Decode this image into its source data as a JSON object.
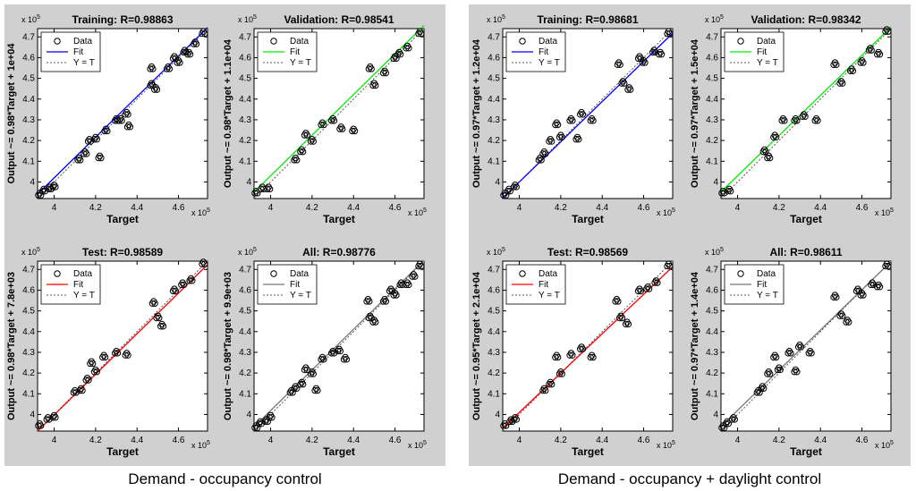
{
  "figure": {
    "captions": [
      "Demand - occupancy control",
      "Demand - occupancy + daylight control"
    ]
  },
  "chart_data": [
    {
      "type": "scatter",
      "group": "Demand - occupancy control",
      "title": "Training: R=0.98863",
      "ylabel": "Output ~= 0.98*Target + 1e+04",
      "xlabel": "Target",
      "fit_color": "#0000ff",
      "slope": 0.98,
      "intercept": 10000,
      "scale_exponent": "5",
      "xlim": [
        3.92,
        4.74
      ],
      "ylim": [
        3.92,
        4.74
      ],
      "xticks": [
        "4",
        "4.2",
        "4.4",
        "4.6"
      ],
      "yticks": [
        "4",
        "4.1",
        "4.2",
        "4.3",
        "4.4",
        "4.5",
        "4.6",
        "4.7"
      ],
      "legend": [
        "Data",
        "Fit",
        "Y = T"
      ],
      "points": [
        [
          3.93,
          3.94
        ],
        [
          3.95,
          3.96
        ],
        [
          3.98,
          3.97
        ],
        [
          4.0,
          3.98
        ],
        [
          4.12,
          4.11
        ],
        [
          4.15,
          4.14
        ],
        [
          4.17,
          4.2
        ],
        [
          4.2,
          4.21
        ],
        [
          4.22,
          4.12
        ],
        [
          4.25,
          4.25
        ],
        [
          4.3,
          4.3
        ],
        [
          4.32,
          4.3
        ],
        [
          4.35,
          4.33
        ],
        [
          4.36,
          4.27
        ],
        [
          4.47,
          4.55
        ],
        [
          4.47,
          4.47
        ],
        [
          4.49,
          4.45
        ],
        [
          4.55,
          4.55
        ],
        [
          4.58,
          4.6
        ],
        [
          4.6,
          4.58
        ],
        [
          4.63,
          4.63
        ],
        [
          4.65,
          4.62
        ],
        [
          4.68,
          4.67
        ],
        [
          4.72,
          4.72
        ]
      ]
    },
    {
      "type": "scatter",
      "group": "Demand - occupancy control",
      "title": "Validation: R=0.98541",
      "ylabel": "Output ~= 0.98*Target + 1.1e+04",
      "xlabel": "Target",
      "fit_color": "#00ee00",
      "slope": 0.98,
      "intercept": 11000,
      "scale_exponent": "5",
      "xlim": [
        3.92,
        4.74
      ],
      "ylim": [
        3.92,
        4.74
      ],
      "xticks": [
        "4",
        "4.2",
        "4.4",
        "4.6"
      ],
      "yticks": [
        "4",
        "4.1",
        "4.2",
        "4.3",
        "4.4",
        "4.5",
        "4.6",
        "4.7"
      ],
      "legend": [
        "Data",
        "Fit",
        "Y = T"
      ],
      "points": [
        [
          3.93,
          3.95
        ],
        [
          3.96,
          3.97
        ],
        [
          3.99,
          3.97
        ],
        [
          4.12,
          4.11
        ],
        [
          4.15,
          4.15
        ],
        [
          4.17,
          4.23
        ],
        [
          4.2,
          4.2
        ],
        [
          4.25,
          4.28
        ],
        [
          4.3,
          4.3
        ],
        [
          4.34,
          4.26
        ],
        [
          4.4,
          4.25
        ],
        [
          4.48,
          4.55
        ],
        [
          4.5,
          4.47
        ],
        [
          4.55,
          4.53
        ],
        [
          4.6,
          4.6
        ],
        [
          4.62,
          4.62
        ],
        [
          4.66,
          4.65
        ],
        [
          4.72,
          4.72
        ]
      ]
    },
    {
      "type": "scatter",
      "group": "Demand - occupancy control",
      "title": "Test: R=0.98589",
      "ylabel": "Output ~= 0.98*Target + 7.8e+03",
      "xlabel": "Target",
      "fit_color": "#ff0000",
      "slope": 0.98,
      "intercept": 7800,
      "scale_exponent": "5",
      "xlim": [
        3.92,
        4.74
      ],
      "ylim": [
        3.92,
        4.74
      ],
      "xticks": [
        "4",
        "4.2",
        "4.4",
        "4.6"
      ],
      "yticks": [
        "4",
        "4.1",
        "4.2",
        "4.3",
        "4.4",
        "4.5",
        "4.6",
        "4.7"
      ],
      "legend": [
        "Data",
        "Fit",
        "Y = T"
      ],
      "points": [
        [
          3.93,
          3.95
        ],
        [
          3.97,
          3.98
        ],
        [
          4.0,
          3.99
        ],
        [
          4.1,
          4.11
        ],
        [
          4.13,
          4.12
        ],
        [
          4.16,
          4.17
        ],
        [
          4.18,
          4.25
        ],
        [
          4.2,
          4.21
        ],
        [
          4.24,
          4.28
        ],
        [
          4.3,
          4.3
        ],
        [
          4.35,
          4.29
        ],
        [
          4.48,
          4.54
        ],
        [
          4.5,
          4.47
        ],
        [
          4.52,
          4.43
        ],
        [
          4.58,
          4.6
        ],
        [
          4.62,
          4.63
        ],
        [
          4.66,
          4.65
        ],
        [
          4.72,
          4.73
        ]
      ]
    },
    {
      "type": "scatter",
      "group": "Demand - occupancy control",
      "title": "All: R=0.98776",
      "ylabel": "Output ~= 0.98*Target + 9.9e+03",
      "xlabel": "Target",
      "fit_color": "#777777",
      "slope": 0.98,
      "intercept": 9900,
      "scale_exponent": "5",
      "xlim": [
        3.92,
        4.74
      ],
      "ylim": [
        3.92,
        4.74
      ],
      "xticks": [
        "4",
        "4.2",
        "4.4",
        "4.6"
      ],
      "yticks": [
        "4",
        "4.1",
        "4.2",
        "4.3",
        "4.4",
        "4.5",
        "4.6",
        "4.7"
      ],
      "legend": [
        "Data",
        "Fit",
        "Y = T"
      ],
      "points": [
        [
          3.93,
          3.94
        ],
        [
          3.95,
          3.96
        ],
        [
          3.98,
          3.97
        ],
        [
          4.0,
          3.99
        ],
        [
          4.1,
          4.11
        ],
        [
          4.12,
          4.13
        ],
        [
          4.15,
          4.15
        ],
        [
          4.17,
          4.22
        ],
        [
          4.2,
          4.2
        ],
        [
          4.22,
          4.12
        ],
        [
          4.25,
          4.27
        ],
        [
          4.3,
          4.3
        ],
        [
          4.33,
          4.31
        ],
        [
          4.36,
          4.27
        ],
        [
          4.47,
          4.55
        ],
        [
          4.48,
          4.47
        ],
        [
          4.5,
          4.45
        ],
        [
          4.55,
          4.55
        ],
        [
          4.58,
          4.6
        ],
        [
          4.6,
          4.58
        ],
        [
          4.63,
          4.63
        ],
        [
          4.66,
          4.63
        ],
        [
          4.69,
          4.67
        ],
        [
          4.72,
          4.72
        ]
      ]
    },
    {
      "type": "scatter",
      "group": "Demand - occupancy + daylight control",
      "title": "Training: R=0.98681",
      "ylabel": "Output ~= 0.97*Target + 1.2e+04",
      "xlabel": "Target",
      "fit_color": "#0000ff",
      "slope": 0.97,
      "intercept": 12000,
      "scale_exponent": "5",
      "xlim": [
        3.92,
        4.74
      ],
      "ylim": [
        3.92,
        4.74
      ],
      "xticks": [
        "4",
        "4.2",
        "4.4",
        "4.6"
      ],
      "yticks": [
        "4",
        "4.1",
        "4.2",
        "4.3",
        "4.4",
        "4.5",
        "4.6",
        "4.7"
      ],
      "legend": [
        "Data",
        "Fit",
        "Y = T"
      ],
      "points": [
        [
          3.93,
          3.94
        ],
        [
          3.95,
          3.96
        ],
        [
          3.98,
          3.98
        ],
        [
          4.1,
          4.11
        ],
        [
          4.12,
          4.14
        ],
        [
          4.15,
          4.2
        ],
        [
          4.18,
          4.28
        ],
        [
          4.2,
          4.22
        ],
        [
          4.25,
          4.3
        ],
        [
          4.28,
          4.21
        ],
        [
          4.3,
          4.33
        ],
        [
          4.35,
          4.3
        ],
        [
          4.48,
          4.57
        ],
        [
          4.5,
          4.48
        ],
        [
          4.53,
          4.45
        ],
        [
          4.58,
          4.6
        ],
        [
          4.6,
          4.58
        ],
        [
          4.65,
          4.63
        ],
        [
          4.68,
          4.62
        ],
        [
          4.72,
          4.72
        ]
      ]
    },
    {
      "type": "scatter",
      "group": "Demand - occupancy + daylight control",
      "title": "Validation: R=0.98342",
      "ylabel": "Output ~= 0.97*Target + 1.5e+04",
      "xlabel": "Target",
      "fit_color": "#00ee00",
      "slope": 0.97,
      "intercept": 15000,
      "scale_exponent": "5",
      "xlim": [
        3.92,
        4.74
      ],
      "ylim": [
        3.92,
        4.74
      ],
      "xticks": [
        "4",
        "4.2",
        "4.4",
        "4.6"
      ],
      "yticks": [
        "4",
        "4.1",
        "4.2",
        "4.3",
        "4.4",
        "4.5",
        "4.6",
        "4.7"
      ],
      "legend": [
        "Data",
        "Fit",
        "Y = T"
      ],
      "points": [
        [
          3.93,
          3.95
        ],
        [
          3.96,
          3.96
        ],
        [
          4.13,
          4.15
        ],
        [
          4.15,
          4.12
        ],
        [
          4.18,
          4.22
        ],
        [
          4.22,
          4.3
        ],
        [
          4.28,
          4.3
        ],
        [
          4.32,
          4.32
        ],
        [
          4.38,
          4.3
        ],
        [
          4.47,
          4.57
        ],
        [
          4.5,
          4.48
        ],
        [
          4.55,
          4.54
        ],
        [
          4.6,
          4.58
        ],
        [
          4.64,
          4.64
        ],
        [
          4.68,
          4.62
        ],
        [
          4.72,
          4.73
        ]
      ]
    },
    {
      "type": "scatter",
      "group": "Demand - occupancy + daylight control",
      "title": "Test: R=0.98569",
      "ylabel": "Output ~= 0.95*Target + 2.1e+04",
      "xlabel": "Target",
      "fit_color": "#ff0000",
      "slope": 0.95,
      "intercept": 21000,
      "scale_exponent": "5",
      "xlim": [
        3.92,
        4.74
      ],
      "ylim": [
        3.92,
        4.74
      ],
      "xticks": [
        "4",
        "4.2",
        "4.4",
        "4.6"
      ],
      "yticks": [
        "4",
        "4.1",
        "4.2",
        "4.3",
        "4.4",
        "4.5",
        "4.6",
        "4.7"
      ],
      "legend": [
        "Data",
        "Fit",
        "Y = T"
      ],
      "points": [
        [
          3.93,
          3.95
        ],
        [
          3.96,
          3.97
        ],
        [
          3.98,
          3.98
        ],
        [
          4.12,
          4.12
        ],
        [
          4.15,
          4.15
        ],
        [
          4.18,
          4.28
        ],
        [
          4.2,
          4.2
        ],
        [
          4.25,
          4.29
        ],
        [
          4.3,
          4.32
        ],
        [
          4.35,
          4.28
        ],
        [
          4.47,
          4.55
        ],
        [
          4.49,
          4.47
        ],
        [
          4.52,
          4.44
        ],
        [
          4.58,
          4.6
        ],
        [
          4.62,
          4.61
        ],
        [
          4.66,
          4.64
        ],
        [
          4.72,
          4.72
        ]
      ]
    },
    {
      "type": "scatter",
      "group": "Demand - occupancy + daylight control",
      "title": "All: R=0.98611",
      "ylabel": "Output ~= 0.97*Target + 1.4e+04",
      "xlabel": "Target",
      "fit_color": "#777777",
      "slope": 0.97,
      "intercept": 14000,
      "scale_exponent": "5",
      "xlim": [
        3.92,
        4.74
      ],
      "ylim": [
        3.92,
        4.74
      ],
      "xticks": [
        "4",
        "4.2",
        "4.4",
        "4.6"
      ],
      "yticks": [
        "4",
        "4.1",
        "4.2",
        "4.3",
        "4.4",
        "4.5",
        "4.6",
        "4.7"
      ],
      "legend": [
        "Data",
        "Fit",
        "Y = T"
      ],
      "points": [
        [
          3.93,
          3.94
        ],
        [
          3.95,
          3.96
        ],
        [
          3.98,
          3.98
        ],
        [
          4.1,
          4.11
        ],
        [
          4.12,
          4.13
        ],
        [
          4.15,
          4.2
        ],
        [
          4.18,
          4.28
        ],
        [
          4.2,
          4.22
        ],
        [
          4.25,
          4.3
        ],
        [
          4.28,
          4.21
        ],
        [
          4.3,
          4.33
        ],
        [
          4.35,
          4.3
        ],
        [
          4.47,
          4.57
        ],
        [
          4.5,
          4.48
        ],
        [
          4.53,
          4.45
        ],
        [
          4.58,
          4.6
        ],
        [
          4.6,
          4.58
        ],
        [
          4.65,
          4.63
        ],
        [
          4.68,
          4.62
        ],
        [
          4.72,
          4.72
        ]
      ]
    }
  ]
}
